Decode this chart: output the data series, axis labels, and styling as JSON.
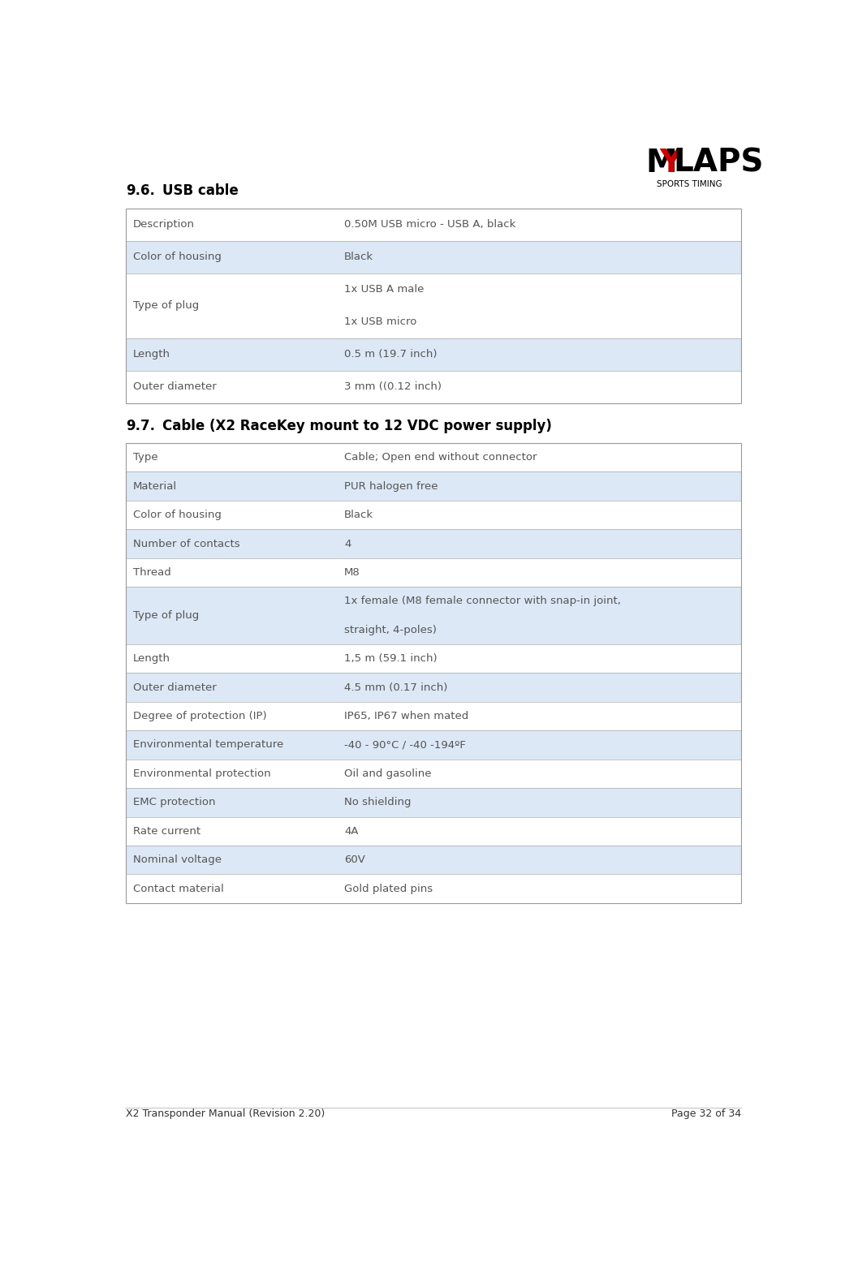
{
  "page_bg": "#ffffff",
  "logo_sub": "SPORTS TIMING",
  "footer_left": "X2 Transponder Manual (Revision 2.20)",
  "footer_right": "Page 32 of 34",
  "table1_rows": [
    {
      "label": "Description",
      "value": "0.50M USB micro - USB A, black",
      "shaded": false
    },
    {
      "label": "Color of housing",
      "value": "Black",
      "shaded": true
    },
    {
      "label": "Type of plug",
      "value": "1x USB A male\n1x USB micro",
      "shaded": false
    },
    {
      "label": "Length",
      "value": "0.5 m (19.7 inch)",
      "shaded": true
    },
    {
      "label": "Outer diameter",
      "value": "3 mm ((0.12 inch)",
      "shaded": false
    }
  ],
  "table2_rows": [
    {
      "label": "Type",
      "value": "Cable; Open end without connector",
      "shaded": false
    },
    {
      "label": "Material",
      "value": "PUR halogen free",
      "shaded": true
    },
    {
      "label": "Color of housing",
      "value": "Black",
      "shaded": false
    },
    {
      "label": "Number of contacts",
      "value": "4",
      "shaded": true
    },
    {
      "label": "Thread",
      "value": "M8",
      "shaded": false
    },
    {
      "label": "Type of plug",
      "value": "1x female (M8 female connector with snap-in joint,\nstraight, 4-poles)",
      "shaded": true
    },
    {
      "label": "Length",
      "value": "1,5 m (59.1 inch)",
      "shaded": false
    },
    {
      "label": "Outer diameter",
      "value": "4.5 mm (0.17 inch)",
      "shaded": true
    },
    {
      "label": "Degree of protection (IP)",
      "value": "IP65, IP67 when mated",
      "shaded": false
    },
    {
      "label": "Environmental temperature",
      "value": "-40 - 90°C / -40 -194ºF",
      "shaded": true
    },
    {
      "label": "Environmental protection",
      "value": "Oil and gasoline",
      "shaded": false
    },
    {
      "label": "EMC protection",
      "value": "No shielding",
      "shaded": true
    },
    {
      "label": "Rate current",
      "value": "4A",
      "shaded": false
    },
    {
      "label": "Nominal voltage",
      "value": "60V",
      "shaded": true
    },
    {
      "label": "Contact material",
      "value": "Gold plated pins",
      "shaded": false
    }
  ],
  "shaded_color": "#dce8f5",
  "border_color": "#999999",
  "text_color": "#555555",
  "title_color": "#000000",
  "cell_fontsize": 9.5,
  "footer_fontsize": 9,
  "title_fontsize": 12,
  "logo_fontsize": 28,
  "logo_sub_fontsize": 7.5
}
